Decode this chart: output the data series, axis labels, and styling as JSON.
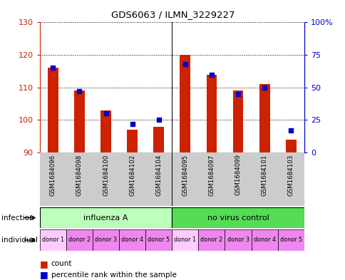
{
  "title": "GDS6063 / ILMN_3229227",
  "samples": [
    "GSM1684096",
    "GSM1684098",
    "GSM1684100",
    "GSM1684102",
    "GSM1684104",
    "GSM1684095",
    "GSM1684097",
    "GSM1684099",
    "GSM1684101",
    "GSM1684103"
  ],
  "counts": [
    116,
    109,
    103,
    97,
    98,
    120,
    114,
    109,
    111,
    94
  ],
  "percentiles": [
    65,
    47,
    30,
    22,
    25,
    68,
    60,
    45,
    50,
    17
  ],
  "ymin": 90,
  "ymax": 130,
  "yticks_left": [
    90,
    100,
    110,
    120,
    130
  ],
  "yticks_right": [
    0,
    25,
    50,
    75,
    100
  ],
  "ytick_labels_right": [
    "0",
    "25",
    "50",
    "75",
    "100%"
  ],
  "bar_color": "#cc2200",
  "percentile_color": "#0000cc",
  "bar_width": 0.4,
  "grid_color": "#000000",
  "infection_labels": [
    "influenza A",
    "no virus control"
  ],
  "individual_labels": [
    "donor 1",
    "donor 2",
    "donor 3",
    "donor 4",
    "donor 5",
    "donor 1",
    "donor 2",
    "donor 3",
    "donor 4",
    "donor 5"
  ],
  "tick_label_color_left": "#cc2200",
  "tick_label_color_right": "#0000cc",
  "infection_light_color": "#bbffbb",
  "infection_dark_color": "#55dd55",
  "individual_light_color": "#ffccff",
  "individual_dark_color": "#ee88ee"
}
